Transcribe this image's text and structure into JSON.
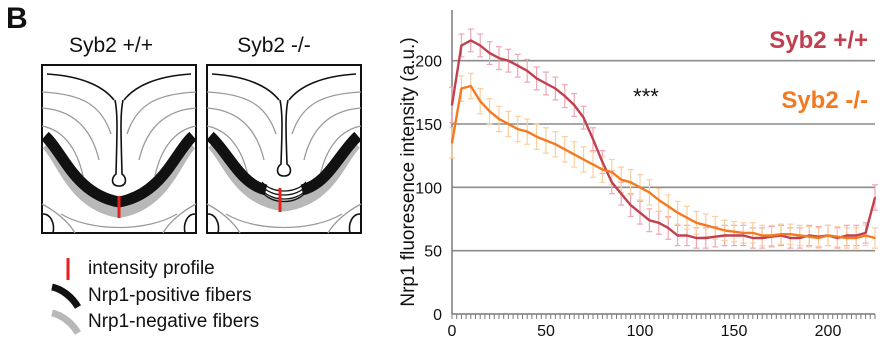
{
  "panel": {
    "letter": "B",
    "schematics": [
      {
        "title": "Syb2 +/+"
      },
      {
        "title": "Syb2 -/-"
      }
    ],
    "legend": [
      {
        "label": "intensity profile",
        "color": "#e8201c"
      },
      {
        "label": "Nrp1-positive fibers",
        "color": "#111111"
      },
      {
        "label": "Nrp1-negative fibers",
        "color": "#b8b8b8"
      }
    ]
  },
  "chart_data": {
    "type": "line",
    "title": "",
    "xlabel": "",
    "ylabel": "Nrp1 fluoresence intensity (a.u.)",
    "xlim": [
      0,
      225
    ],
    "ylim": [
      0,
      240
    ],
    "xticks": [
      0,
      50,
      100,
      150,
      200
    ],
    "yticks": [
      0,
      50,
      100,
      150,
      200
    ],
    "grid": "horizontal",
    "legend_position": "top-right",
    "annotation": "***",
    "series": [
      {
        "name": "Syb2 +/+",
        "color": "#c0404f",
        "error_color": "#efa7b3",
        "x": [
          0,
          5,
          10,
          15,
          20,
          25,
          30,
          35,
          40,
          45,
          50,
          55,
          60,
          65,
          70,
          75,
          80,
          85,
          90,
          95,
          100,
          105,
          110,
          115,
          120,
          125,
          130,
          135,
          140,
          145,
          150,
          155,
          160,
          165,
          170,
          175,
          180,
          185,
          190,
          195,
          200,
          205,
          210,
          215,
          220,
          225
        ],
        "y": [
          165,
          212,
          216,
          212,
          206,
          202,
          200,
          196,
          192,
          186,
          182,
          178,
          172,
          165,
          155,
          138,
          120,
          104,
          95,
          86,
          80,
          74,
          72,
          68,
          62,
          62,
          60,
          60,
          61,
          62,
          62,
          62,
          60,
          60,
          61,
          62,
          60,
          60,
          62,
          61,
          62,
          60,
          62,
          62,
          64,
          92
        ],
        "error": [
          14,
          9,
          9,
          9,
          9,
          9,
          9,
          9,
          9,
          9,
          9,
          9,
          9,
          9,
          9,
          9,
          9,
          9,
          9,
          9,
          9,
          9,
          9,
          9,
          8,
          8,
          8,
          8,
          8,
          8,
          8,
          8,
          8,
          8,
          8,
          8,
          8,
          8,
          8,
          8,
          8,
          8,
          8,
          8,
          8,
          10
        ]
      },
      {
        "name": "Syb2 -/-",
        "color": "#f47a20",
        "error_color": "#fbcf9f",
        "x": [
          0,
          5,
          10,
          15,
          20,
          25,
          30,
          35,
          40,
          45,
          50,
          55,
          60,
          65,
          70,
          75,
          80,
          85,
          90,
          95,
          100,
          105,
          110,
          115,
          120,
          125,
          130,
          135,
          140,
          145,
          150,
          155,
          160,
          165,
          170,
          175,
          180,
          185,
          190,
          195,
          200,
          205,
          210,
          215,
          220,
          225
        ],
        "y": [
          135,
          178,
          180,
          168,
          160,
          154,
          150,
          146,
          144,
          140,
          137,
          134,
          130,
          126,
          122,
          118,
          114,
          112,
          106,
          104,
          100,
          96,
          90,
          85,
          80,
          76,
          72,
          70,
          68,
          66,
          65,
          64,
          64,
          62,
          62,
          63,
          63,
          62,
          61,
          60,
          62,
          61,
          60,
          60,
          62,
          60
        ],
        "error": [
          12,
          10,
          10,
          10,
          10,
          10,
          10,
          10,
          10,
          10,
          10,
          10,
          10,
          10,
          10,
          10,
          10,
          10,
          10,
          10,
          10,
          10,
          9,
          9,
          9,
          9,
          9,
          9,
          9,
          8,
          8,
          8,
          8,
          8,
          8,
          8,
          8,
          8,
          8,
          8,
          8,
          8,
          8,
          8,
          8,
          8
        ]
      }
    ]
  }
}
